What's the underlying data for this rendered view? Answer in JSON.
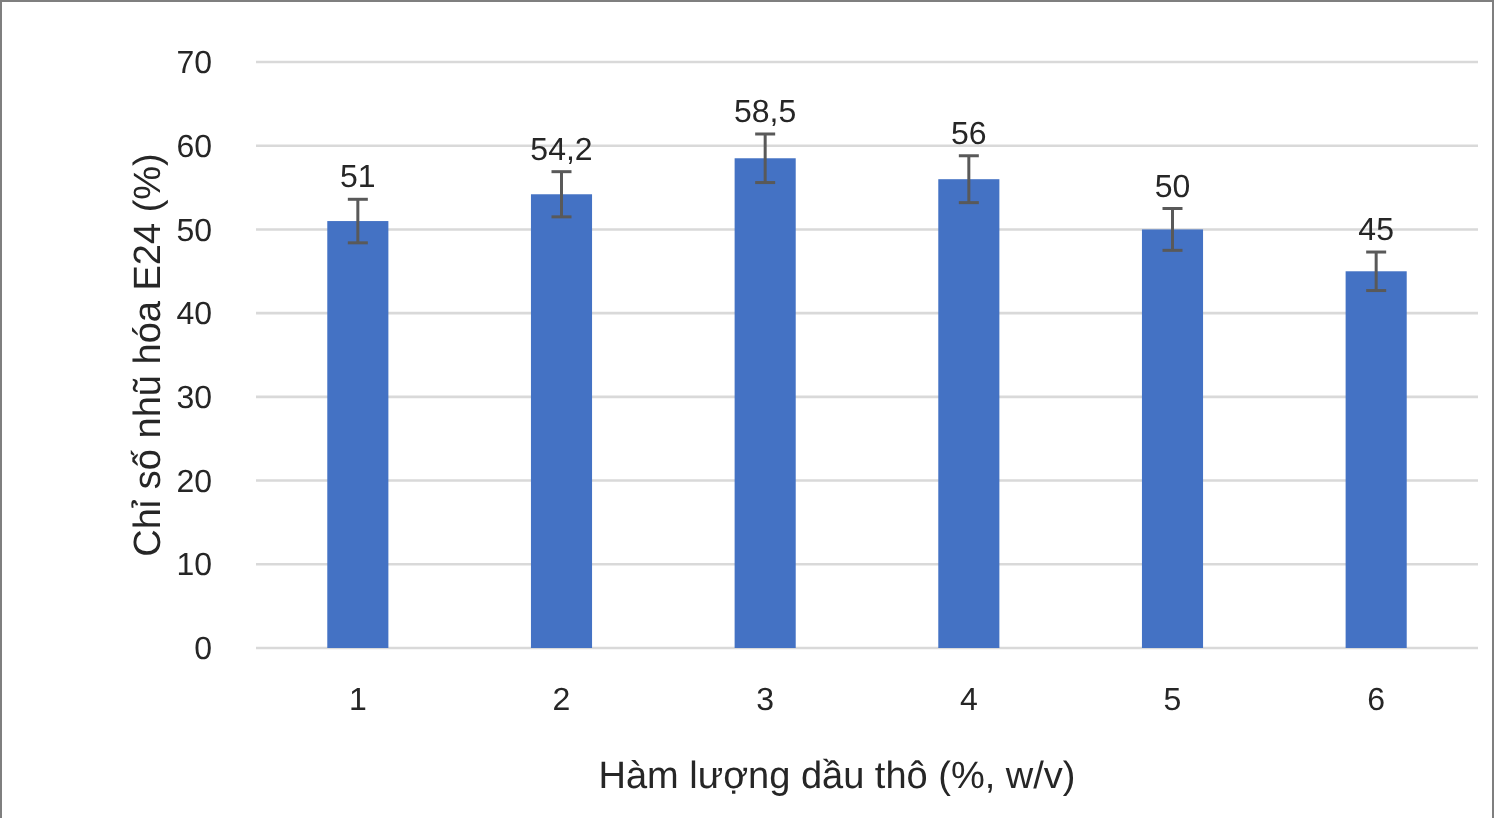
{
  "chart_data": {
    "type": "bar",
    "xlabel": "Hàm lượng dầu thô (%, w/v)",
    "ylabel": "Chỉ số nhũ hóa E24 (%)",
    "categories": [
      "1",
      "2",
      "3",
      "4",
      "5",
      "6"
    ],
    "values": [
      51,
      54.2,
      58.5,
      56,
      50,
      45
    ],
    "value_labels": [
      "51",
      "54,2",
      "58,5",
      "56",
      "50",
      "45"
    ],
    "errors": [
      2.6,
      2.7,
      2.9,
      2.8,
      2.5,
      2.3
    ],
    "color": "#4472c4",
    "ylim": [
      0,
      70
    ],
    "yticks": [
      0,
      10,
      20,
      30,
      40,
      50,
      60,
      70
    ],
    "grid": "y"
  }
}
